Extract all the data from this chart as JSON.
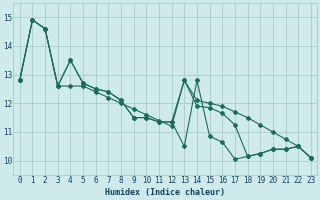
{
  "xlabel": "Humidex (Indice chaleur)",
  "x": [
    0,
    1,
    2,
    3,
    4,
    5,
    6,
    7,
    8,
    9,
    10,
    11,
    12,
    13,
    14,
    15,
    16,
    17,
    18,
    19,
    20,
    21,
    22,
    23
  ],
  "line_upper": [
    12.8,
    14.9,
    14.6,
    12.6,
    12.6,
    12.6,
    12.4,
    12.2,
    12.0,
    11.8,
    11.6,
    11.4,
    11.2,
    12.8,
    12.1,
    12.0,
    11.9,
    11.7,
    11.5,
    11.25,
    11.0,
    10.75,
    10.5,
    10.1
  ],
  "line_jagged": [
    12.8,
    14.9,
    14.6,
    12.6,
    13.5,
    12.7,
    12.5,
    12.4,
    12.1,
    11.5,
    11.5,
    11.35,
    11.35,
    10.5,
    12.8,
    10.85,
    10.65,
    10.05,
    10.15,
    10.25,
    10.4,
    10.4,
    10.5,
    10.1
  ],
  "line_lower": [
    12.8,
    14.9,
    14.6,
    12.6,
    13.5,
    12.7,
    12.5,
    12.4,
    12.1,
    11.5,
    11.5,
    11.35,
    11.35,
    12.8,
    11.9,
    11.85,
    11.65,
    11.25,
    10.15,
    10.25,
    10.4,
    10.4,
    10.5,
    10.1
  ],
  "bg_color": "#ceeaea",
  "grid_color": "#aacccc",
  "line_color": "#1a6b5a",
  "ylim": [
    9.5,
    15.5
  ],
  "yticks": [
    10,
    11,
    12,
    13,
    14,
    15
  ],
  "xlim": [
    -0.5,
    23.5
  ]
}
